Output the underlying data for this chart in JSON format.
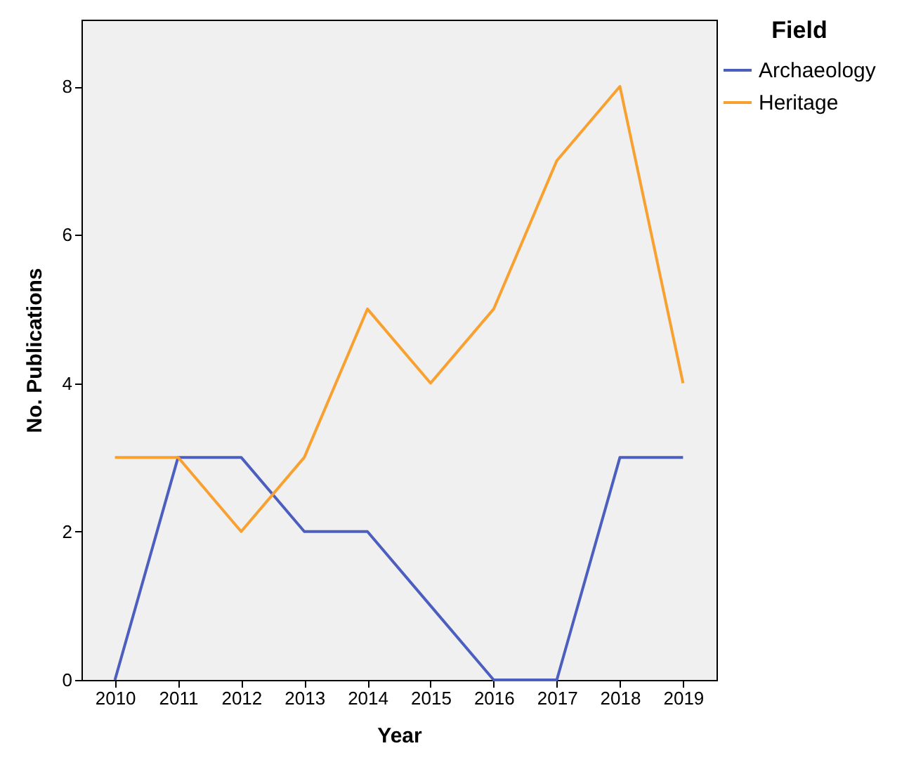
{
  "chart_data": {
    "type": "line",
    "xlabel": "Year",
    "ylabel": "No. Publications",
    "legend_title": "Field",
    "categories": [
      "2010",
      "2011",
      "2012",
      "2013",
      "2014",
      "2015",
      "2016",
      "2017",
      "2018",
      "2019"
    ],
    "series": [
      {
        "name": "Archaeology",
        "color": "#4c5fbf",
        "values": [
          0,
          3,
          3,
          2,
          2,
          1,
          0,
          0,
          3,
          3
        ]
      },
      {
        "name": "Heritage",
        "color": "#f8a030",
        "values": [
          3,
          3,
          2,
          3,
          5,
          4,
          5,
          7,
          8,
          4
        ]
      }
    ],
    "ylim": [
      0,
      8.9
    ],
    "yticks": [
      0,
      2,
      4,
      6,
      8
    ],
    "grid": false,
    "legend": "right",
    "marker": "none",
    "line_style": "solid"
  }
}
